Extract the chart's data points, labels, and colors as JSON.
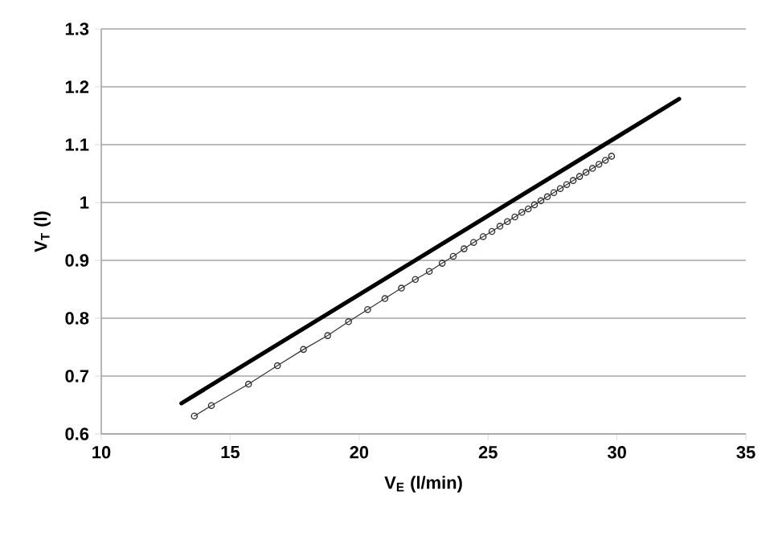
{
  "chart_data": {
    "type": "line",
    "xlabel": "V$_{E}$ (l/min)",
    "ylabel": "V$_{T}$ (l)",
    "xlim": [
      10,
      35
    ],
    "xticks": [
      10,
      15,
      20,
      25,
      30,
      35
    ],
    "ylim": [
      0.6,
      1.3
    ],
    "yticks": [
      0.6,
      0.7,
      0.8,
      0.9,
      1,
      1.1,
      1.2,
      1.3
    ],
    "grid": "y",
    "series": [
      {
        "color": "#000000",
        "x": [
          13.11,
          32.41
        ],
        "values": [
          0.653,
          1.179
        ],
        "marker": "none",
        "line_style": "solid"
      },
      {
        "color": "#333333",
        "marker": "circle",
        "line_style": "solid",
        "x": [
          13.61,
          14.27,
          15.71,
          16.83,
          17.84,
          18.78,
          19.59,
          20.33,
          21.0,
          21.64,
          22.18,
          22.72,
          23.22,
          23.65,
          24.07,
          24.44,
          24.81,
          25.15,
          25.46,
          25.75,
          26.04,
          26.31,
          26.56,
          26.8,
          27.05,
          27.3,
          27.55,
          27.8,
          28.05,
          28.3,
          28.55,
          28.8,
          29.05,
          29.3,
          29.55,
          29.79
        ],
        "values": [
          0.631,
          0.649,
          0.686,
          0.718,
          0.746,
          0.77,
          0.794,
          0.815,
          0.834,
          0.852,
          0.867,
          0.881,
          0.895,
          0.907,
          0.92,
          0.931,
          0.941,
          0.95,
          0.959,
          0.967,
          0.975,
          0.983,
          0.989,
          0.996,
          1.003,
          1.01,
          1.017,
          1.024,
          1.031,
          1.038,
          1.045,
          1.052,
          1.059,
          1.066,
          1.073,
          1.08
        ]
      }
    ]
  }
}
